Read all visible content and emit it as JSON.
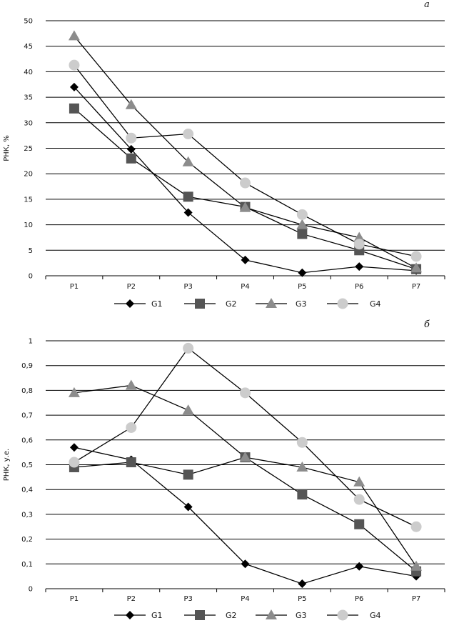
{
  "colors": {
    "G1": "#000000",
    "G2": "#555555",
    "G3": "#8c8c8c",
    "G4": "#cccccc",
    "line": "#000000",
    "grid": "#000000"
  },
  "chart_data": [
    {
      "type": "line",
      "panel_label": "a",
      "ylabel": "РНК, %",
      "xlabel": "",
      "ylim": [
        0,
        50
      ],
      "ytick_step": 5,
      "yticks": [
        "0",
        "5",
        "10",
        "15",
        "20",
        "25",
        "30",
        "35",
        "40",
        "45",
        "50"
      ],
      "categories": [
        "P1",
        "P2",
        "P3",
        "P4",
        "P5",
        "P6",
        "P7"
      ],
      "grid": true,
      "legend_position": "bottom",
      "series": [
        {
          "name": "G1",
          "marker": "diamond",
          "values": [
            37.0,
            24.8,
            12.4,
            3.1,
            0.6,
            1.8,
            1.0
          ]
        },
        {
          "name": "G2",
          "marker": "square",
          "values": [
            32.8,
            23.0,
            15.5,
            13.5,
            8.2,
            5.0,
            1.3
          ]
        },
        {
          "name": "G3",
          "marker": "triangle",
          "values": [
            47.0,
            33.5,
            22.3,
            13.4,
            10.0,
            7.5,
            1.5
          ]
        },
        {
          "name": "G4",
          "marker": "circle",
          "values": [
            41.3,
            27.0,
            27.8,
            18.2,
            12.0,
            6.2,
            3.8
          ]
        }
      ]
    },
    {
      "type": "line",
      "panel_label": "б",
      "ylabel": "РНК, у.е.",
      "xlabel": "",
      "ylim": [
        0,
        1
      ],
      "ytick_step": 0.1,
      "yticks": [
        "0",
        "0,1",
        "0,2",
        "0,3",
        "0,4",
        "0,5",
        "0,6",
        "0,7",
        "0,8",
        "0,9",
        "1"
      ],
      "categories": [
        "P1",
        "P2",
        "P3",
        "P4",
        "P5",
        "P6",
        "P7"
      ],
      "grid": true,
      "legend_position": "bottom",
      "series": [
        {
          "name": "G1",
          "marker": "diamond",
          "values": [
            0.57,
            0.52,
            0.33,
            0.1,
            0.02,
            0.09,
            0.05
          ]
        },
        {
          "name": "G2",
          "marker": "square",
          "values": [
            0.49,
            0.51,
            0.46,
            0.53,
            0.38,
            0.26,
            0.07
          ]
        },
        {
          "name": "G3",
          "marker": "triangle",
          "values": [
            0.79,
            0.82,
            0.72,
            0.53,
            0.49,
            0.43,
            0.09
          ]
        },
        {
          "name": "G4",
          "marker": "circle",
          "values": [
            0.51,
            0.65,
            0.97,
            0.79,
            0.59,
            0.36,
            0.25
          ]
        }
      ]
    }
  ]
}
